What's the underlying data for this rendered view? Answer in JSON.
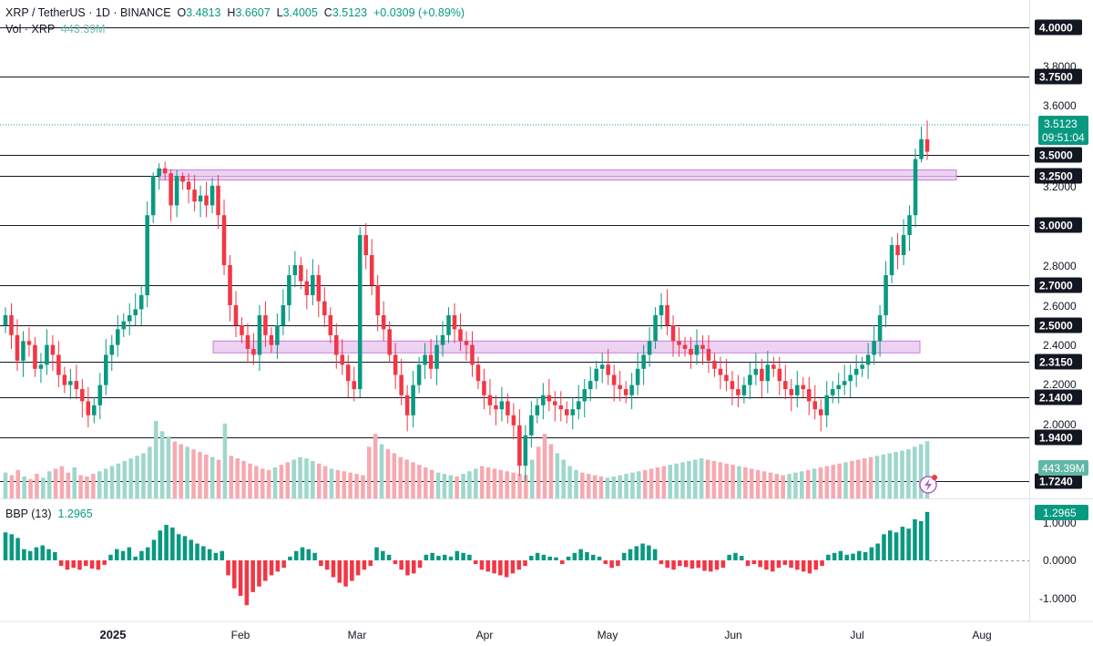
{
  "header": {
    "symbol": "XRP / TetherUS · 1D · BINANCE",
    "o_label": "O",
    "o": "3.4813",
    "h_label": "H",
    "h": "3.6607",
    "l_label": "L",
    "l": "3.4005",
    "c_label": "C",
    "c": "3.5123",
    "change": "+0.0309 (+0.89%)"
  },
  "volume_legend": {
    "label": "Vol · XRP",
    "value": "443.39M"
  },
  "bbp_legend": {
    "label": "BBP (13)",
    "value": "1.2965"
  },
  "colors": {
    "up": "#089981",
    "down": "#f23645",
    "zone": "#c77fd8",
    "zone_fill": "#e8c7f0",
    "level": "#131722"
  },
  "chart_data": [
    {
      "type": "candlestick",
      "title": "XRP / TetherUS · 1D · BINANCE",
      "x_tick_labels": [
        "2025",
        "Feb",
        "Mar",
        "Apr",
        "May",
        "Jun",
        "Jul",
        "Aug"
      ],
      "y_tick_labels": [
        "4.0000",
        "3.8000",
        "3.6000",
        "3.2000",
        "2.8000",
        "2.6000",
        "2.4000",
        "2.2000",
        "2.0000"
      ],
      "price_labels": [
        "4.0000",
        "3.7500",
        "3.5000",
        "3.2500",
        "3.0000",
        "2.7000",
        "2.5000",
        "2.3150",
        "2.1400",
        "1.9400",
        "1.7240"
      ],
      "current_price": "3.5123",
      "countdown": "09:51:04",
      "volume_label": "443.39M",
      "levels": [
        4.0,
        3.75,
        3.5,
        3.25,
        3.0,
        2.7,
        2.5,
        2.315,
        2.14,
        1.94,
        1.724
      ],
      "zones": [
        {
          "from": "2025-01-13",
          "to": "2025-07-24",
          "low": 3.26,
          "high": 3.32
        },
        {
          "from": "2025-01-21",
          "to": "2025-07-15",
          "low": 2.36,
          "high": 2.42
        }
      ],
      "candles_close": [
        2.55,
        2.45,
        2.32,
        2.42,
        2.4,
        2.28,
        2.3,
        2.4,
        2.35,
        2.25,
        2.2,
        2.22,
        2.18,
        2.12,
        2.05,
        2.1,
        2.2,
        2.35,
        2.4,
        2.48,
        2.52,
        2.55,
        2.58,
        2.65,
        3.05,
        3.25,
        3.34,
        3.28,
        3.1,
        3.25,
        3.22,
        3.18,
        3.12,
        3.15,
        3.1,
        3.2,
        3.05,
        2.8,
        2.6,
        2.5,
        2.45,
        2.38,
        2.35,
        2.55,
        2.45,
        2.4,
        2.5,
        2.6,
        2.75,
        2.8,
        2.72,
        2.65,
        2.75,
        2.62,
        2.55,
        2.45,
        2.35,
        2.3,
        2.22,
        2.18,
        2.95,
        2.85,
        2.7,
        2.55,
        2.48,
        2.35,
        2.25,
        2.15,
        2.05,
        2.2,
        2.3,
        2.35,
        2.28,
        2.4,
        2.45,
        2.55,
        2.48,
        2.42,
        2.4,
        2.3,
        2.22,
        2.15,
        2.1,
        2.08,
        2.12,
        2.05,
        2.0,
        1.8,
        1.95,
        2.05,
        2.1,
        2.15,
        2.12,
        2.1,
        2.08,
        2.05,
        2.08,
        2.12,
        2.18,
        2.22,
        2.28,
        2.3,
        2.25,
        2.2,
        2.18,
        2.15,
        2.2,
        2.28,
        2.35,
        2.42,
        2.55,
        2.6,
        2.5,
        2.42,
        2.4,
        2.38,
        2.35,
        2.4,
        2.38,
        2.32,
        2.28,
        2.25,
        2.22,
        2.18,
        2.15,
        2.2,
        2.25,
        2.28,
        2.22,
        2.3,
        2.28,
        2.22,
        2.18,
        2.15,
        2.2,
        2.18,
        2.12,
        2.08,
        2.05,
        2.15,
        2.18,
        2.2,
        2.22,
        2.25,
        2.28,
        2.3,
        2.35,
        2.42,
        2.55,
        2.75,
        2.9,
        2.85,
        2.95,
        3.05,
        3.45,
        3.55,
        3.51
      ],
      "bbp_values": [
        0.75,
        0.7,
        0.6,
        0.3,
        0.25,
        0.35,
        0.4,
        0.3,
        0.22,
        -0.15,
        -0.25,
        -0.2,
        -0.25,
        -0.15,
        -0.22,
        -0.25,
        -0.12,
        0.15,
        0.3,
        0.25,
        0.35,
        0.1,
        0.25,
        0.35,
        0.55,
        0.8,
        0.95,
        0.88,
        0.7,
        0.65,
        0.55,
        0.45,
        0.38,
        0.3,
        0.2,
        0.25,
        -0.4,
        -0.75,
        -0.95,
        -1.2,
        -0.85,
        -0.7,
        -0.55,
        -0.4,
        -0.3,
        -0.2,
        0.1,
        0.25,
        0.35,
        0.3,
        0.2,
        -0.15,
        -0.25,
        -0.45,
        -0.6,
        -0.7,
        -0.55,
        -0.4,
        -0.25,
        -0.15,
        0.35,
        0.25,
        0.15,
        -0.1,
        -0.25,
        -0.4,
        -0.35,
        -0.2,
        0.15,
        0.2,
        0.12,
        0.15,
        0.1,
        0.25,
        0.2,
        0.15,
        -0.1,
        -0.25,
        -0.3,
        -0.35,
        -0.4,
        -0.45,
        -0.35,
        -0.25,
        -0.15,
        0.12,
        0.2,
        0.15,
        0.1,
        0.08,
        -0.1,
        0.1,
        0.2,
        0.3,
        0.22,
        0.15,
        0.1,
        -0.1,
        -0.2,
        -0.15,
        0.2,
        0.3,
        0.38,
        0.45,
        0.4,
        0.3,
        -0.1,
        -0.2,
        -0.25,
        -0.15,
        -0.18,
        -0.22,
        -0.2,
        -0.28,
        -0.3,
        -0.25,
        -0.2,
        0.15,
        0.2,
        0.12,
        -0.15,
        -0.1,
        -0.18,
        -0.25,
        -0.3,
        -0.2,
        -0.12,
        -0.2,
        -0.25,
        -0.3,
        -0.35,
        -0.25,
        -0.15,
        0.15,
        0.2,
        0.25,
        0.15,
        0.18,
        0.25,
        0.22,
        0.35,
        0.45,
        0.7,
        0.8,
        0.75,
        0.9,
        0.85,
        1.1,
        1.05,
        1.2965
      ],
      "volume_m": [
        200,
        180,
        220,
        170,
        150,
        190,
        160,
        210,
        230,
        250,
        200,
        240,
        180,
        170,
        190,
        210,
        230,
        250,
        270,
        290,
        310,
        330,
        350,
        400,
        600,
        520,
        480,
        440,
        420,
        400,
        380,
        360,
        340,
        320,
        300,
        580,
        330,
        310,
        290,
        270,
        250,
        230,
        220,
        240,
        260,
        280,
        300,
        320,
        310,
        290,
        270,
        250,
        230,
        220,
        210,
        200,
        190,
        180,
        400,
        500,
        420,
        380,
        350,
        320,
        300,
        280,
        260,
        240,
        220,
        200,
        190,
        180,
        170,
        190,
        210,
        230,
        250,
        240,
        230,
        220,
        210,
        200,
        190,
        180,
        300,
        400,
        500,
        420,
        350,
        300,
        250,
        220,
        200,
        190,
        180,
        170,
        160,
        170,
        180,
        190,
        200,
        210,
        220,
        230,
        240,
        250,
        260,
        270,
        280,
        290,
        300,
        310,
        300,
        290,
        280,
        270,
        260,
        250,
        240,
        230,
        220,
        210,
        200,
        190,
        180,
        190,
        200,
        210,
        220,
        230,
        240,
        250,
        260,
        270,
        280,
        290,
        300,
        310,
        320,
        330,
        340,
        350,
        360,
        370,
        380,
        400,
        420,
        443.39
      ]
    },
    {
      "type": "bar",
      "title": "BBP (13)",
      "y_tick_labels": [
        "1.0000",
        "0.0000",
        "-1.0000"
      ],
      "current_value": "1.2965"
    }
  ]
}
